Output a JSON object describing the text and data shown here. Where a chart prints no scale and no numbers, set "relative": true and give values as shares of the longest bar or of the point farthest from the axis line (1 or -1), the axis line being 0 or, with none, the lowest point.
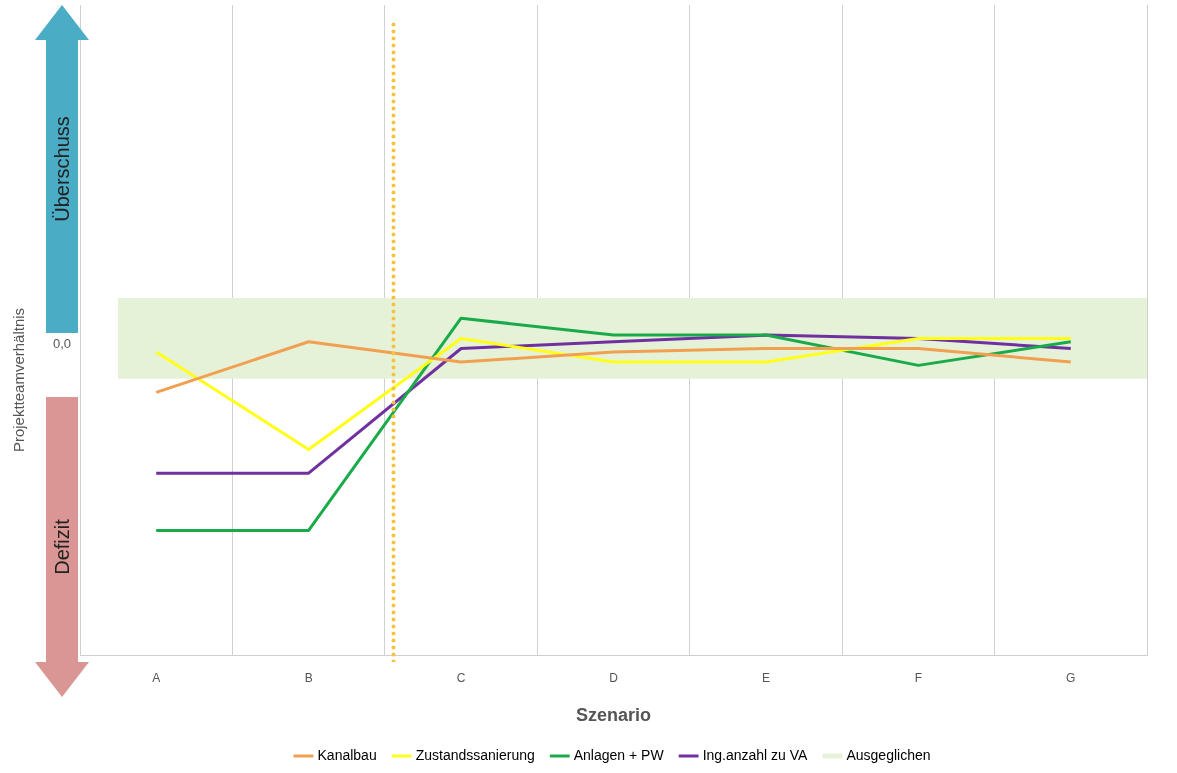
{
  "chart_data": {
    "type": "line",
    "relative": true,
    "xlabel": "Szenario",
    "categories": [
      "A",
      "B",
      "C",
      "D",
      "E",
      "F",
      "G"
    ],
    "series": [
      {
        "name": "Kanalbau",
        "color": "#f0a050",
        "values": [
          0.78,
          0.93,
          0.87,
          0.9,
          0.91,
          0.91,
          0.87
        ]
      },
      {
        "name": "Zustandssanierung",
        "color": "#ffff1a",
        "values": [
          0.9,
          0.61,
          0.94,
          0.87,
          0.87,
          0.94,
          0.94
        ]
      },
      {
        "name": "Anlagen + PW",
        "color": "#1aaa4a",
        "values": [
          0.37,
          0.37,
          1,
          0.95,
          0.95,
          0.86,
          0.93
        ]
      },
      {
        "name": "Ing.anzahl zu VA",
        "color": "#7030a0",
        "values": [
          0.54,
          0.54,
          0.91,
          0.93,
          0.95,
          0.94,
          0.91
        ]
      }
    ],
    "bands": [
      {
        "axis": "y",
        "from": 0.82,
        "to": 1.06,
        "label": "Ausgeglichen",
        "color": "#e6f2d8"
      }
    ],
    "annotations": [
      "Überschuss",
      "Defizit",
      "Projektteamverhältnis",
      "0,0"
    ],
    "grid": "x",
    "legend": "bottom",
    "marker": "none",
    "line_style": "solid"
  }
}
